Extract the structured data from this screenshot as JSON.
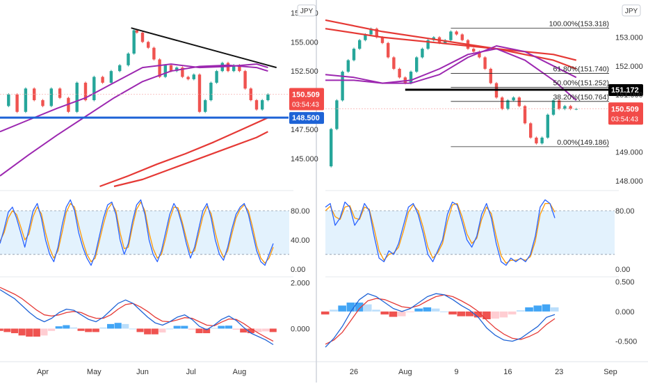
{
  "chart_data": [
    {
      "type": "line",
      "panel": "left-price",
      "currency": "JPY",
      "y_ticks": [
        "157.500",
        "155.000",
        "152.500",
        "147.500",
        "145.000"
      ],
      "ylim": [
        142.6,
        158.6
      ],
      "xlim": [
        0,
        100
      ],
      "x_ticks": [
        {
          "x": 15,
          "label": "Apr"
        },
        {
          "x": 33,
          "label": "May"
        },
        {
          "x": 50,
          "label": "Jun"
        },
        {
          "x": 67,
          "label": "Jul"
        },
        {
          "x": 84,
          "label": "Aug"
        }
      ],
      "price": {
        "x": [
          0,
          3,
          6,
          9,
          12,
          15,
          18,
          21,
          24,
          27,
          30,
          33,
          36,
          39,
          42,
          45,
          47,
          48,
          50,
          52,
          54,
          56,
          58,
          60,
          62,
          64,
          66,
          68,
          70,
          72,
          74,
          76,
          78,
          80,
          82,
          84,
          86,
          88,
          90,
          92,
          94
        ],
        "y": [
          149.5,
          150.5,
          149.0,
          151.0,
          150.0,
          149.5,
          151.0,
          150.2,
          149.0,
          151.5,
          150.0,
          152.0,
          151.5,
          152.5,
          153.0,
          154.0,
          156.0,
          155.8,
          155.0,
          154.5,
          153.5,
          152.0,
          153.0,
          152.5,
          152.8,
          152.0,
          151.8,
          152.2,
          149.0,
          150.0,
          151.5,
          152.5,
          153.2,
          152.5,
          153.0,
          152.5,
          151.0,
          150.0,
          149.2,
          150.0,
          150.5
        ]
      },
      "ma_purple_1": {
        "x": [
          0,
          10,
          20,
          30,
          40,
          50,
          60,
          70,
          80,
          90,
          94
        ],
        "y": [
          147.3,
          148.3,
          149.3,
          150.2,
          151.5,
          152.8,
          153.1,
          152.8,
          152.9,
          153.1,
          152.8
        ]
      },
      "ma_purple_2": {
        "x": [
          0,
          10,
          20,
          30,
          40,
          50,
          60,
          70,
          80,
          90,
          94
        ],
        "y": [
          143.5,
          145.3,
          147.0,
          148.6,
          150.2,
          151.6,
          152.5,
          152.9,
          153.0,
          152.8,
          152.5
        ]
      },
      "ma_red_1": {
        "x": [
          35,
          45,
          55,
          65,
          75,
          85,
          94
        ],
        "y": [
          142.6,
          143.5,
          144.5,
          145.4,
          146.4,
          147.5,
          148.5
        ]
      },
      "ma_red_2": {
        "x": [
          40,
          50,
          60,
          70,
          80,
          90,
          94
        ],
        "y": [
          142.6,
          143.2,
          144.1,
          145.0,
          145.9,
          146.8,
          147.3
        ]
      },
      "trendline": {
        "x": [
          46,
          97
        ],
        "y": [
          156.2,
          152.8
        ]
      },
      "support_line": {
        "value": "148.500",
        "y": 148.5,
        "color": "#1e63d6"
      },
      "last_price": {
        "value": "150.509",
        "countdown": "03:54:43",
        "color": "#f24b48"
      }
    },
    {
      "type": "line",
      "panel": "left-stochastic",
      "y_ticks": [
        "80.00",
        "40.00",
        "0.00"
      ],
      "ylim": [
        -5,
        102
      ],
      "levels": [
        80,
        20
      ],
      "k": [
        35,
        55,
        78,
        85,
        70,
        50,
        30,
        55,
        80,
        90,
        70,
        40,
        20,
        10,
        30,
        60,
        85,
        95,
        80,
        50,
        30,
        15,
        5,
        20,
        45,
        70,
        88,
        92,
        75,
        40,
        20,
        35,
        65,
        88,
        95,
        75,
        40,
        20,
        10,
        25,
        50,
        75,
        90,
        80,
        60,
        35,
        15,
        30,
        55,
        80,
        90,
        70,
        40,
        20,
        12,
        30,
        55,
        75,
        85,
        90,
        75,
        50,
        25,
        10,
        5,
        20,
        35
      ],
      "d": [
        38,
        50,
        70,
        80,
        75,
        58,
        40,
        48,
        72,
        85,
        76,
        50,
        28,
        15,
        25,
        50,
        78,
        90,
        85,
        60,
        38,
        20,
        10,
        15,
        38,
        62,
        82,
        90,
        80,
        50,
        28,
        30,
        58,
        82,
        92,
        80,
        50,
        28,
        15,
        20,
        42,
        68,
        85,
        84,
        65,
        42,
        22,
        25,
        48,
        72,
        86,
        76,
        50,
        28,
        16,
        25,
        48,
        70,
        82,
        88,
        80,
        58,
        32,
        15,
        8,
        15,
        30
      ]
    },
    {
      "type": "bar",
      "panel": "left-macd",
      "y_ticks": [
        "2.000",
        "0.000"
      ],
      "ylim": [
        -1.2,
        2.2
      ],
      "macd": [
        1.7,
        1.5,
        1.3,
        1.0,
        0.7,
        0.45,
        0.3,
        0.45,
        0.7,
        0.85,
        0.8,
        0.6,
        0.4,
        0.3,
        0.5,
        0.8,
        1.1,
        1.25,
        1.1,
        0.8,
        0.5,
        0.25,
        0.15,
        0.3,
        0.5,
        0.6,
        0.4,
        0.1,
        -0.05,
        0.15,
        0.4,
        0.55,
        0.35,
        0.05,
        -0.2,
        -0.35,
        -0.5,
        -0.7
      ],
      "signal": [
        1.8,
        1.65,
        1.5,
        1.3,
        1.05,
        0.8,
        0.6,
        0.55,
        0.6,
        0.7,
        0.75,
        0.7,
        0.55,
        0.45,
        0.45,
        0.6,
        0.85,
        1.05,
        1.1,
        0.95,
        0.75,
        0.5,
        0.32,
        0.3,
        0.38,
        0.48,
        0.45,
        0.3,
        0.15,
        0.12,
        0.28,
        0.42,
        0.4,
        0.22,
        0.0,
        -0.2,
        -0.38,
        -0.55
      ],
      "hist": [
        -0.1,
        -0.15,
        -0.2,
        -0.3,
        -0.35,
        -0.35,
        -0.3,
        -0.1,
        0.1,
        0.15,
        0.05,
        -0.1,
        -0.15,
        -0.15,
        0.05,
        0.2,
        0.25,
        0.2,
        0.0,
        -0.15,
        -0.25,
        -0.25,
        -0.17,
        0.0,
        0.12,
        0.12,
        -0.05,
        -0.2,
        -0.2,
        0.03,
        0.12,
        0.13,
        -0.05,
        -0.17,
        -0.2,
        -0.15,
        -0.12,
        -0.15
      ]
    },
    {
      "type": "line",
      "panel": "right-price",
      "currency": "JPY",
      "y_ticks": [
        "153.000",
        "152.000",
        "151.000",
        "149.000",
        "148.000"
      ],
      "ylim": [
        147.8,
        154.3
      ],
      "xlim": [
        0,
        100
      ],
      "x_ticks": [
        {
          "x": 10,
          "label": "26"
        },
        {
          "x": 28,
          "label": "Aug"
        },
        {
          "x": 46,
          "label": "9"
        },
        {
          "x": 64,
          "label": "16"
        },
        {
          "x": 82,
          "label": "23"
        },
        {
          "x": 100,
          "label": "Sep"
        }
      ],
      "price": {
        "x": [
          0,
          2,
          4,
          6,
          8,
          10,
          12,
          14,
          16,
          18,
          20,
          22,
          24,
          26,
          28,
          30,
          32,
          34,
          36,
          38,
          40,
          42,
          44,
          46,
          48,
          50,
          52,
          54,
          56,
          58,
          60,
          62,
          64,
          66,
          68,
          70,
          72,
          74,
          76,
          78,
          80,
          82,
          84,
          86,
          88
        ],
        "y": [
          148.5,
          149.8,
          150.8,
          151.8,
          152.2,
          152.6,
          152.9,
          153.1,
          153.3,
          153.0,
          152.8,
          152.3,
          151.9,
          151.6,
          151.4,
          151.8,
          152.3,
          152.6,
          152.9,
          153.0,
          152.8,
          152.9,
          153.2,
          153.1,
          152.9,
          152.6,
          152.5,
          152.3,
          151.9,
          151.4,
          150.9,
          150.5,
          150.8,
          150.9,
          150.6,
          150.0,
          149.5,
          149.3,
          149.5,
          150.3,
          150.8,
          150.5,
          150.6,
          150.5,
          150.5
        ]
      },
      "ma_purple_1": {
        "x": [
          0,
          10,
          20,
          30,
          40,
          50,
          60,
          70,
          80,
          88
        ],
        "y": [
          151.5,
          151.5,
          151.4,
          151.5,
          151.9,
          152.4,
          152.6,
          152.2,
          151.5,
          150.8
        ]
      },
      "ma_purple_2": {
        "x": [
          0,
          10,
          20,
          30,
          40,
          50,
          60,
          70,
          80,
          88
        ],
        "y": [
          151.7,
          151.6,
          151.4,
          151.4,
          151.7,
          152.3,
          152.7,
          152.5,
          152.0,
          151.6
        ]
      },
      "ma_red_1": {
        "x": [
          0,
          20,
          40,
          60,
          80,
          88
        ],
        "y": [
          153.6,
          153.2,
          152.9,
          152.6,
          152.2,
          151.9
        ]
      },
      "ma_red_2": {
        "x": [
          0,
          20,
          40,
          60,
          80,
          88
        ],
        "y": [
          153.3,
          153.0,
          152.8,
          152.6,
          152.4,
          152.2
        ]
      },
      "fib_levels": [
        {
          "label": "100.00%(153.318)",
          "y": 153.318
        },
        {
          "label": "61.80%(151.740)",
          "y": 151.74
        },
        {
          "label": "50.00%(151.252)",
          "y": 151.252
        },
        {
          "label": "38.20%(150.764)",
          "y": 150.764
        },
        {
          "label": "0.00%(149.186)",
          "y": 149.186
        }
      ],
      "resistance_line": {
        "value": "151.172",
        "y": 151.172,
        "color": "#000000"
      },
      "last_price": {
        "value": "150.509",
        "countdown": "03:54:43",
        "color": "#f24b48"
      }
    },
    {
      "type": "line",
      "panel": "right-stochastic",
      "y_ticks": [
        "80.00",
        "0.00"
      ],
      "ylim": [
        -5,
        102
      ],
      "levels": [
        80,
        20
      ],
      "k": [
        85,
        90,
        60,
        70,
        92,
        85,
        60,
        70,
        90,
        80,
        45,
        15,
        10,
        25,
        20,
        35,
        60,
        85,
        90,
        75,
        50,
        20,
        10,
        25,
        40,
        75,
        92,
        88,
        65,
        40,
        30,
        45,
        75,
        90,
        70,
        35,
        10,
        5,
        15,
        10,
        15,
        10,
        20,
        45,
        85,
        95,
        90,
        70
      ],
      "d": [
        80,
        86,
        72,
        68,
        85,
        87,
        70,
        68,
        85,
        82,
        55,
        25,
        12,
        20,
        22,
        30,
        52,
        78,
        88,
        80,
        58,
        30,
        15,
        22,
        35,
        65,
        88,
        90,
        72,
        48,
        35,
        42,
        68,
        85,
        76,
        45,
        18,
        8,
        12,
        12,
        14,
        12,
        17,
        38,
        75,
        90,
        90,
        78
      ]
    },
    {
      "type": "bar",
      "panel": "right-macd",
      "y_ticks": [
        "0.500",
        "0.000",
        "-0.500"
      ],
      "ylim": [
        -0.75,
        0.56
      ],
      "macd": [
        -0.6,
        -0.45,
        -0.25,
        0.0,
        0.2,
        0.3,
        0.25,
        0.15,
        0.05,
        0.0,
        0.05,
        0.15,
        0.25,
        0.3,
        0.28,
        0.2,
        0.1,
        0.02,
        -0.1,
        -0.28,
        -0.4,
        -0.48,
        -0.5,
        -0.45,
        -0.35,
        -0.25,
        -0.1,
        -0.05
      ],
      "signal": [
        -0.55,
        -0.48,
        -0.35,
        -0.15,
        0.05,
        0.18,
        0.22,
        0.2,
        0.14,
        0.08,
        0.06,
        0.1,
        0.18,
        0.25,
        0.28,
        0.25,
        0.18,
        0.1,
        0.0,
        -0.15,
        -0.28,
        -0.38,
        -0.45,
        -0.47,
        -0.42,
        -0.35,
        -0.22,
        -0.12
      ],
      "hist": [
        -0.05,
        0.03,
        0.1,
        0.15,
        0.15,
        0.12,
        0.03,
        -0.05,
        -0.09,
        -0.08,
        -0.01,
        0.05,
        0.07,
        0.05,
        0.0,
        -0.05,
        -0.08,
        -0.08,
        -0.1,
        -0.13,
        -0.12,
        -0.1,
        -0.05,
        0.02,
        0.07,
        0.1,
        0.12,
        0.07
      ]
    }
  ]
}
